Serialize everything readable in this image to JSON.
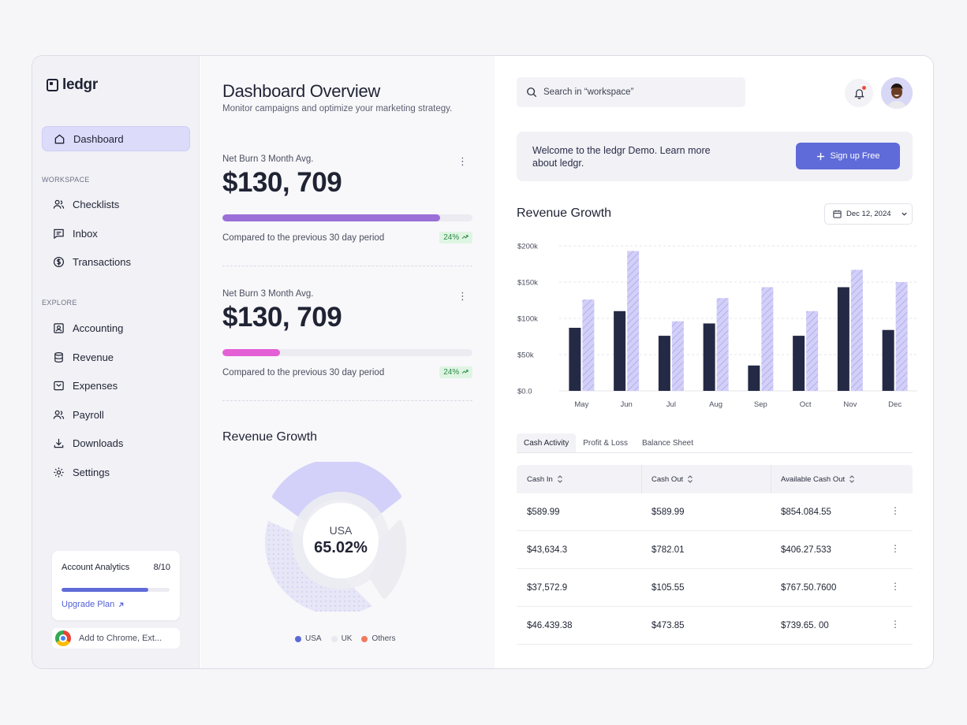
{
  "brand": {
    "name": "ledgr"
  },
  "sidebar": {
    "dashboard": "Dashboard",
    "workspace_label": "WORKSPACE",
    "workspace_items": [
      "Checklists",
      "Inbox",
      "Transactions"
    ],
    "explore_label": "EXPLORE",
    "explore_items": [
      "Accounting",
      "Revenue",
      "Expenses",
      "Payroll",
      "Downloads",
      "Settings"
    ],
    "analytics": {
      "title": "Account Analytics",
      "count": "8/10",
      "progress": 0.8,
      "upgrade": "Upgrade Plan"
    },
    "chrome": "Add to Chrome, Ext..."
  },
  "overview": {
    "title": "Dashboard Overview",
    "subtitle": "Monitor campaigns and optimize your marketing strategy.",
    "metrics": [
      {
        "label": "Net Burn 3 Month Avg.",
        "value": "$130, 709",
        "progress": 0.87,
        "color": "#9b6fd8",
        "compare": "Compared to the previous 30 day period",
        "delta": "24%"
      },
      {
        "label": "Net Burn 3 Month Avg.",
        "value": "$130, 709",
        "progress": 0.23,
        "color": "#e45fd6",
        "compare": "Compared to the previous 30 day period",
        "delta": "24%"
      }
    ],
    "donut": {
      "title": "Revenue Growth",
      "center_label": "USA",
      "center_value": "65.02%",
      "legend": [
        {
          "name": "USA",
          "color": "#5b6ad8"
        },
        {
          "name": "UK",
          "color": "#e8e8ef"
        },
        {
          "name": "Others",
          "color": "#f07a5f"
        }
      ]
    }
  },
  "header": {
    "search_placeholder": "Search in “workspace”"
  },
  "welcome": {
    "text": "Welcome to the ledgr Demo. Learn more about ledgr.",
    "button": "Sign up Free"
  },
  "revenue": {
    "title": "Revenue Growth",
    "date": "Dec 12, 2024"
  },
  "chart_data": {
    "type": "bar",
    "categories": [
      "May",
      "Jun",
      "Jul",
      "Aug",
      "Sep",
      "Oct",
      "Nov",
      "Dec"
    ],
    "series": [
      {
        "values": [
          87000,
          110000,
          76000,
          93000,
          35000,
          76000,
          143000,
          84000
        ],
        "color": "#242a45"
      },
      {
        "values": [
          126000,
          193000,
          96000,
          128000,
          143000,
          110000,
          167000,
          150000
        ],
        "color": "#c8c5f5"
      }
    ],
    "yticks": [
      "$0.0",
      "$50k",
      "$100k",
      "$150k",
      "$200k"
    ],
    "ylim": [
      0,
      200000
    ],
    "grid": true
  },
  "tabs": [
    "Cash Activity",
    "Profit & Loss",
    "Balance Sheet"
  ],
  "table": {
    "columns": [
      "Cash In",
      "Cash Out",
      "Available Cash Out"
    ],
    "rows": [
      [
        "$589.99",
        "$589.99",
        "$854.084.55"
      ],
      [
        "$43,634.3",
        "$782.01",
        "$406.27.533"
      ],
      [
        "$37,572.9",
        "$105.55",
        "$767.50.7600"
      ],
      [
        "$46.439.38",
        "$473.85",
        "$739.65. 00"
      ]
    ]
  }
}
